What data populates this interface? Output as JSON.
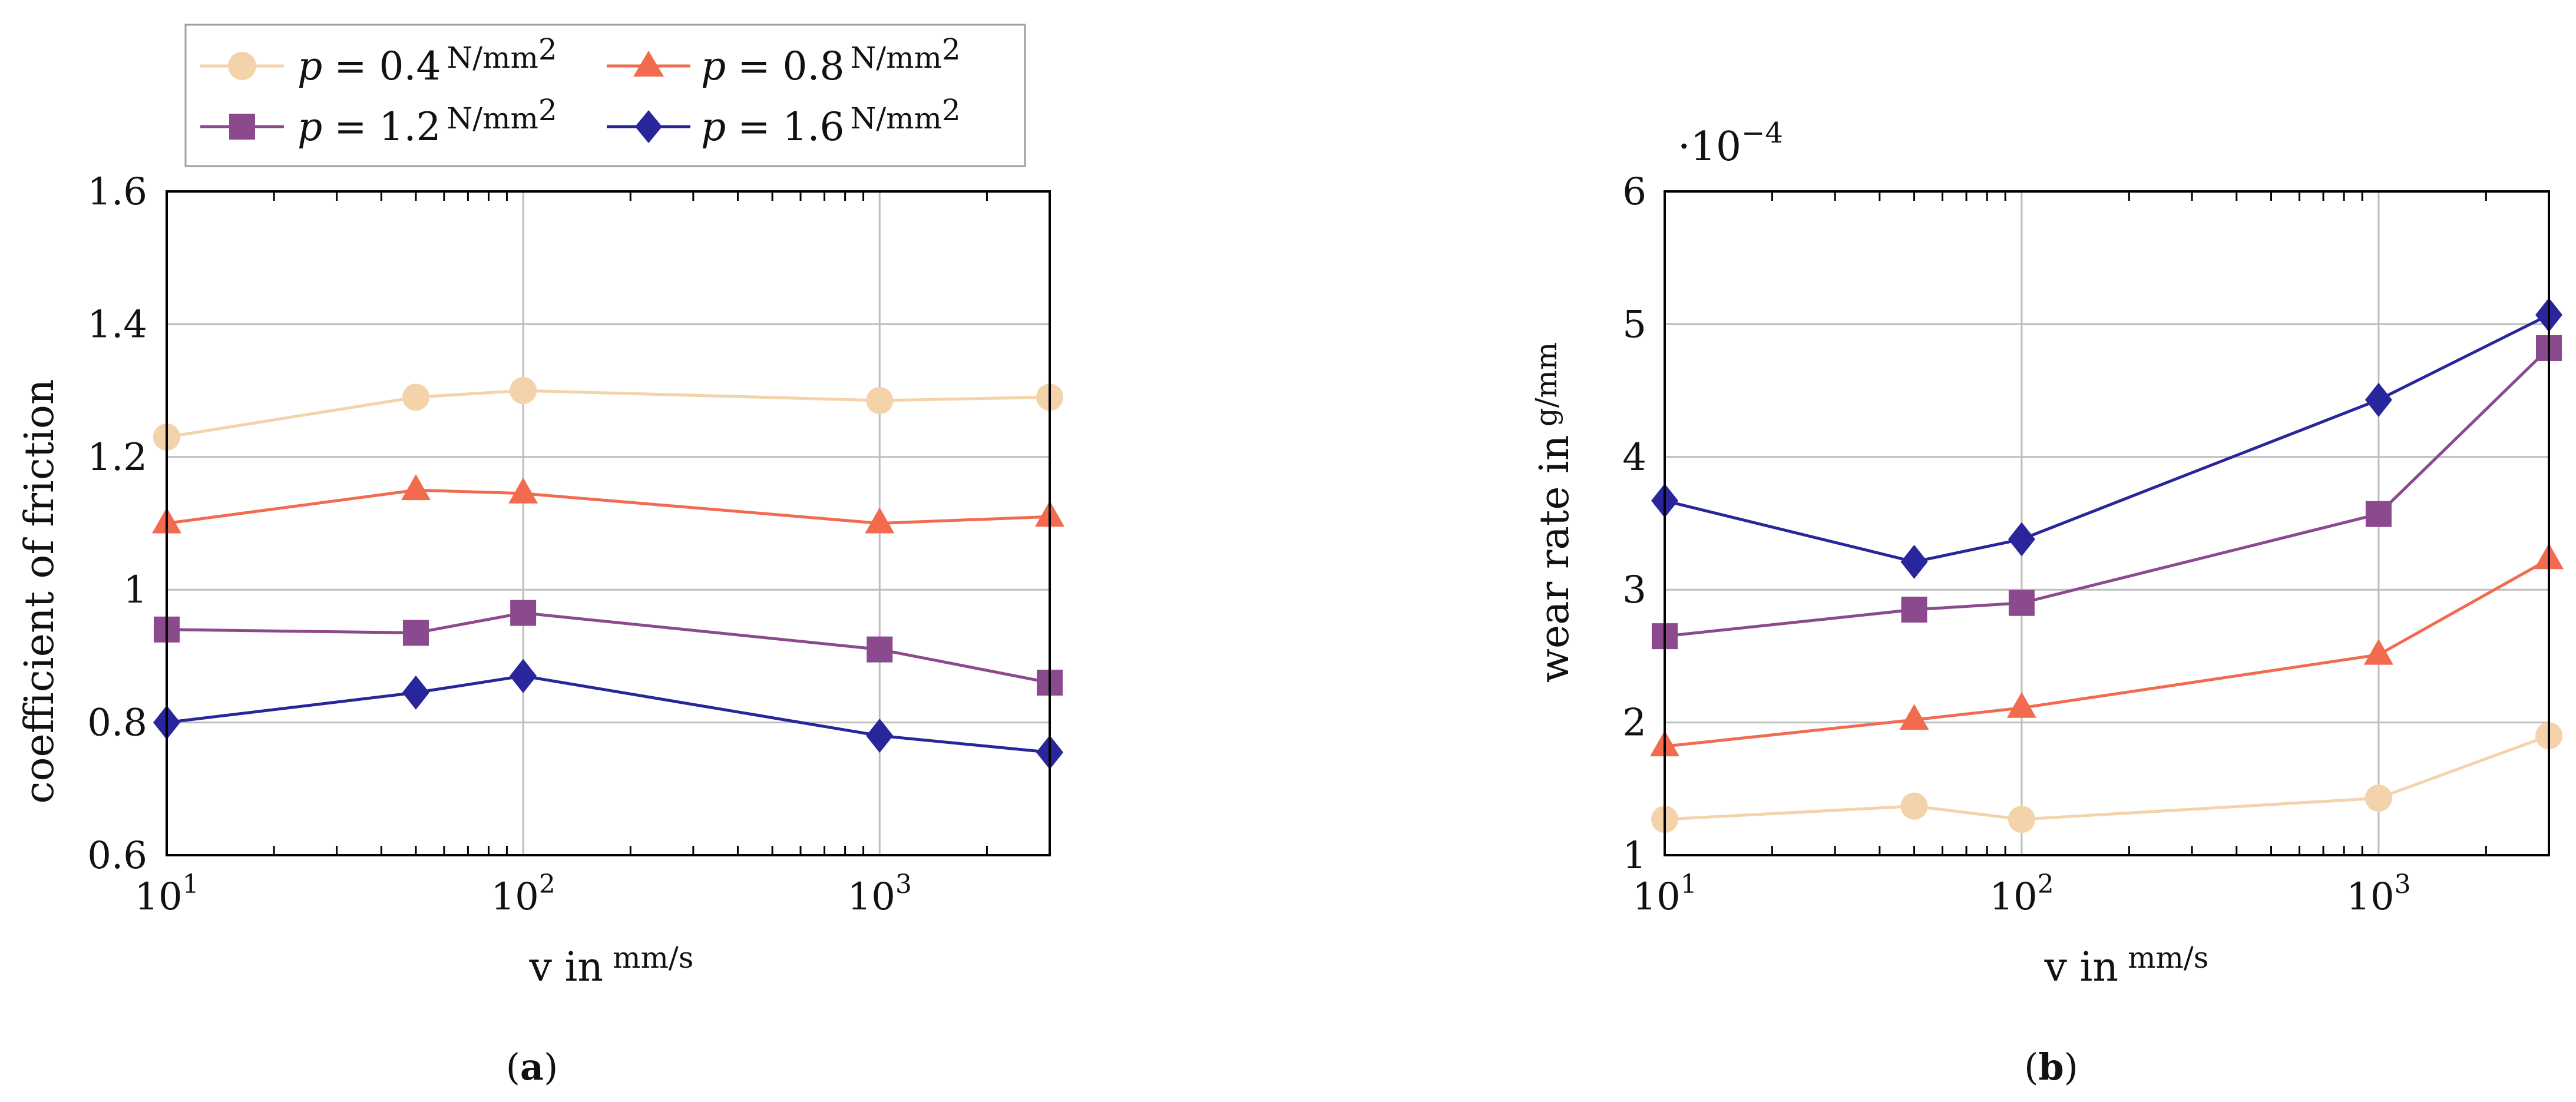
{
  "legend": {
    "entries": [
      {
        "symbol": "p",
        "eq": "= ",
        "value": "0.4",
        "unit": "N/mm",
        "exp": "2"
      },
      {
        "symbol": "p",
        "eq": "= ",
        "value": "0.8",
        "unit": "N/mm",
        "exp": "2"
      },
      {
        "symbol": "p",
        "eq": "= ",
        "value": "1.2",
        "unit": "N/mm",
        "exp": "2"
      },
      {
        "symbol": "p",
        "eq": "= ",
        "value": "1.6",
        "unit": "N/mm",
        "exp": "2"
      }
    ]
  },
  "colors": {
    "p04": "#f4d3aa",
    "p08": "#f26b4f",
    "p12": "#8c4a8e",
    "p16": "#29259a",
    "grid": "#bdbdbd",
    "axis": "#000000"
  },
  "chart_data": [
    {
      "type": "line",
      "caption": "(a)",
      "caption_letter": "a",
      "xlabel": "v in",
      "xlabel_unit": "mm/s",
      "ylabel": "coefficient of friction",
      "xscale": "log",
      "xlim": [
        10,
        3000
      ],
      "ylim": [
        0.6,
        1.6
      ],
      "xticks": [
        {
          "base": "10",
          "exp": "1",
          "value": 10
        },
        {
          "base": "10",
          "exp": "2",
          "value": 100
        },
        {
          "base": "10",
          "exp": "3",
          "value": 1000
        }
      ],
      "yticks": [
        {
          "label": "0.6",
          "value": 0.6
        },
        {
          "label": "0.8",
          "value": 0.8
        },
        {
          "label": "1",
          "value": 1.0
        },
        {
          "label": "1.2",
          "value": 1.2
        },
        {
          "label": "1.4",
          "value": 1.4
        },
        {
          "label": "1.6",
          "value": 1.6
        }
      ],
      "x": [
        10,
        50,
        100,
        1000,
        3000
      ],
      "series": [
        {
          "name": "p = 0.4 N/mm2",
          "marker": "circle",
          "color_key": "p04",
          "values": [
            1.23,
            1.29,
            1.3,
            1.285,
            1.29
          ]
        },
        {
          "name": "p = 0.8 N/mm2",
          "marker": "triangle",
          "color_key": "p08",
          "values": [
            1.1,
            1.15,
            1.145,
            1.1,
            1.11
          ]
        },
        {
          "name": "p = 1.2 N/mm2",
          "marker": "square",
          "color_key": "p12",
          "values": [
            0.94,
            0.935,
            0.965,
            0.91,
            0.86
          ]
        },
        {
          "name": "p = 1.6 N/mm2",
          "marker": "diamond",
          "color_key": "p16",
          "values": [
            0.8,
            0.845,
            0.87,
            0.78,
            0.755
          ]
        }
      ]
    },
    {
      "type": "line",
      "caption": "(b)",
      "caption_letter": "b",
      "xlabel": "v in",
      "xlabel_unit": "mm/s",
      "ylabel": "wear rate in",
      "ylabel_unit": "g/mm",
      "scale_note": "·10",
      "scale_exp": "−4",
      "xscale": "log",
      "xlim": [
        10,
        3000
      ],
      "ylim": [
        1,
        6
      ],
      "xticks": [
        {
          "base": "10",
          "exp": "1",
          "value": 10
        },
        {
          "base": "10",
          "exp": "2",
          "value": 100
        },
        {
          "base": "10",
          "exp": "3",
          "value": 1000
        }
      ],
      "yticks": [
        {
          "label": "1",
          "value": 1
        },
        {
          "label": "2",
          "value": 2
        },
        {
          "label": "3",
          "value": 3
        },
        {
          "label": "4",
          "value": 4
        },
        {
          "label": "5",
          "value": 5
        },
        {
          "label": "6",
          "value": 6
        }
      ],
      "x": [
        10,
        50,
        100,
        1000,
        3000
      ],
      "series": [
        {
          "name": "p = 0.4 N/mm2",
          "marker": "circle",
          "color_key": "p04",
          "values": [
            1.27,
            1.37,
            1.27,
            1.43,
            1.9
          ]
        },
        {
          "name": "p = 0.8 N/mm2",
          "marker": "triangle",
          "color_key": "p08",
          "values": [
            1.82,
            2.02,
            2.11,
            2.51,
            3.23
          ]
        },
        {
          "name": "p = 1.2 N/mm2",
          "marker": "square",
          "color_key": "p12",
          "values": [
            2.65,
            2.85,
            2.9,
            3.57,
            4.82
          ]
        },
        {
          "name": "p = 1.6 N/mm2",
          "marker": "diamond",
          "color_key": "p16",
          "values": [
            3.67,
            3.21,
            3.38,
            4.43,
            5.07
          ]
        }
      ]
    }
  ]
}
